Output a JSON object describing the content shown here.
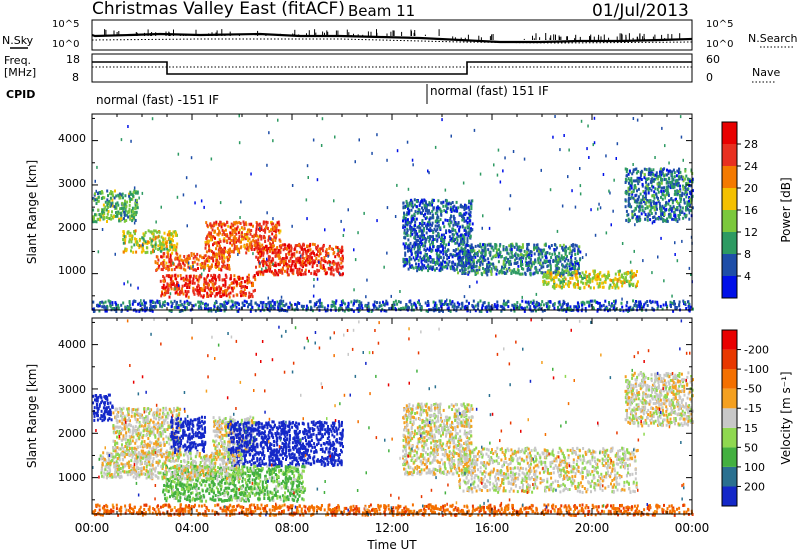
{
  "header": {
    "site": "Christmas Valley East (fitACF)",
    "beam": "Beam 11",
    "date": "01/Jul/2013"
  },
  "noise_panel": {
    "left_label": "N.Sky",
    "right_label": "N.Search",
    "left_ticks": [
      "10^5",
      "10^0"
    ],
    "right_ticks": [
      "10^5",
      "10^0"
    ]
  },
  "freq_panel": {
    "left_label_1": "Freq.",
    "left_label_2": "[MHz]",
    "right_label": "Nave",
    "left_ticks": [
      "18",
      "8"
    ],
    "right_ticks": [
      "60",
      "0"
    ]
  },
  "cpid_panel": {
    "label": "CPID",
    "segments": [
      "normal (fast) -151 IF",
      "normal (fast) 151 IF"
    ]
  },
  "axes": {
    "ylabel": "Slant Range [km]",
    "xlabel": "Time UT",
    "xticks": [
      "00:00",
      "04:00",
      "08:00",
      "12:00",
      "16:00",
      "20:00",
      "00:00"
    ],
    "yticks": [
      "1000",
      "2000",
      "3000",
      "4000"
    ]
  },
  "power_scale": {
    "label": "Power [dB]",
    "ticks": [
      "4",
      "8",
      "12",
      "16",
      "20",
      "24",
      "28"
    ],
    "colors": [
      "#0010e8",
      "#1e4ea8",
      "#2d9a62",
      "#7bc83c",
      "#f4c000",
      "#f47a00",
      "#e83020",
      "#e80000"
    ]
  },
  "velocity_scale": {
    "label": "Velocity [m s⁻¹]",
    "ticks": [
      "200",
      "100",
      "50",
      "15",
      "-15",
      "-50",
      "-100",
      "-200"
    ],
    "colors": [
      "#1428c8",
      "#2a7090",
      "#43b040",
      "#8fd850",
      "#c8c8c8",
      "#f4a020",
      "#f47000",
      "#e83800",
      "#e80000"
    ]
  },
  "chart_data": [
    {
      "type": "heatmap",
      "name": "Power",
      "xlabel": "Time UT",
      "ylabel": "Slant Range [km]",
      "xlim": [
        0,
        24
      ],
      "ylim": [
        180,
        4600
      ],
      "colorbar": {
        "label": "Power [dB]",
        "range": [
          0,
          32
        ]
      },
      "regions": [
        {
          "t": [
            0,
            1.8
          ],
          "r": [
            2200,
            2900
          ],
          "level": 12
        },
        {
          "t": [
            1.2,
            3.4
          ],
          "r": [
            1500,
            2000
          ],
          "level": 16
        },
        {
          "t": [
            2.5,
            5.5
          ],
          "r": [
            1100,
            1500
          ],
          "level": 24
        },
        {
          "t": [
            2.7,
            6.5
          ],
          "r": [
            500,
            1000
          ],
          "level": 26
        },
        {
          "t": [
            4.5,
            7.5
          ],
          "r": [
            1500,
            2200
          ],
          "level": 24
        },
        {
          "t": [
            6.5,
            10.0
          ],
          "r": [
            1000,
            1700
          ],
          "level": 26
        },
        {
          "t": [
            0,
            24
          ],
          "r": [
            180,
            420
          ],
          "level": 6
        },
        {
          "t": [
            14.6,
            19.5
          ],
          "r": [
            1000,
            1700
          ],
          "level": 8
        },
        {
          "t": [
            18.0,
            21.8
          ],
          "r": [
            700,
            1100
          ],
          "level": 16
        },
        {
          "t": [
            21.3,
            24
          ],
          "r": [
            2200,
            3400
          ],
          "level": 8
        },
        {
          "t": [
            12.4,
            15.2
          ],
          "r": [
            1100,
            2700
          ],
          "level": 6
        }
      ]
    },
    {
      "type": "heatmap",
      "name": "Velocity",
      "xlabel": "Time UT",
      "ylabel": "Slant Range [km]",
      "xlim": [
        0,
        24
      ],
      "ylim": [
        180,
        4600
      ],
      "colorbar": {
        "label": "Velocity [m s⁻¹]",
        "range": [
          -200,
          200
        ]
      },
      "regions": [
        {
          "t": [
            0,
            0.8
          ],
          "r": [
            2300,
            2900
          ],
          "velocity": 200
        },
        {
          "t": [
            0.8,
            3.5
          ],
          "r": [
            1500,
            2600
          ],
          "velocity": 0
        },
        {
          "t": [
            3.1,
            4.5
          ],
          "r": [
            1600,
            2400
          ],
          "velocity": 200
        },
        {
          "t": [
            4.8,
            6.5
          ],
          "r": [
            1600,
            2400
          ],
          "velocity": 0
        },
        {
          "t": [
            5.4,
            10.0
          ],
          "r": [
            1300,
            2300
          ],
          "velocity": 200
        },
        {
          "t": [
            2.8,
            8.5
          ],
          "r": [
            500,
            1300
          ],
          "velocity": 40
        },
        {
          "t": [
            0.3,
            6.0
          ],
          "r": [
            1000,
            1600
          ],
          "velocity": 0
        },
        {
          "t": [
            0,
            24
          ],
          "r": [
            180,
            420
          ],
          "velocity": -60
        },
        {
          "t": [
            12.4,
            15.2
          ],
          "r": [
            1100,
            2700
          ],
          "velocity": 0
        },
        {
          "t": [
            14.6,
            21.8
          ],
          "r": [
            700,
            1700
          ],
          "velocity": 0
        },
        {
          "t": [
            21.3,
            24
          ],
          "r": [
            2200,
            3400
          ],
          "velocity": 0
        }
      ]
    }
  ]
}
